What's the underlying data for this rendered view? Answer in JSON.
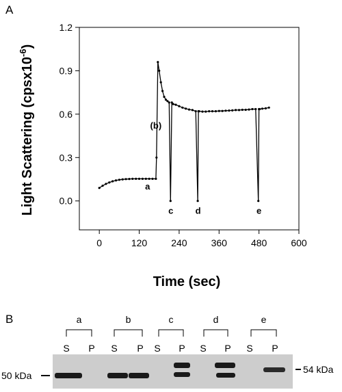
{
  "panel_a_label": "A",
  "panel_b_label": "B",
  "chart_data": {
    "type": "line",
    "xlabel": "Time (sec)",
    "ylabel_main": "Light Scattering (cpsx10",
    "ylabel_exp": "-6",
    "ylabel_close": ")",
    "xlim": [
      -60,
      600
    ],
    "ylim": [
      -0.2,
      1.2
    ],
    "xticks": [
      0,
      120,
      240,
      360,
      480,
      600
    ],
    "yticks": [
      0.0,
      0.3,
      0.6,
      0.9,
      1.2
    ],
    "xtick_labels": [
      "0",
      "120",
      "240",
      "360",
      "480",
      "600"
    ],
    "ytick_labels": [
      "0.0",
      "0.3",
      "0.6",
      "0.9",
      "1.2"
    ],
    "grid": false,
    "series": [
      {
        "x": [
          0,
          10,
          20,
          30,
          40,
          50,
          60,
          70,
          80,
          90,
          100,
          110,
          120,
          130,
          140,
          150,
          160,
          170,
          172,
          176,
          180,
          185,
          190,
          195,
          200,
          205,
          210,
          214,
          218,
          222,
          230,
          240,
          250,
          260,
          270,
          280,
          290,
          296,
          298,
          300,
          310,
          320,
          330,
          340,
          350,
          360,
          370,
          380,
          390,
          400,
          410,
          420,
          430,
          440,
          450,
          460,
          470,
          478,
          480,
          482,
          490,
          500,
          510
        ],
        "y": [
          0.09,
          0.105,
          0.118,
          0.128,
          0.136,
          0.142,
          0.146,
          0.149,
          0.151,
          0.152,
          0.153,
          0.153,
          0.153,
          0.153,
          0.153,
          0.153,
          0.153,
          0.153,
          0.3,
          0.96,
          0.9,
          0.82,
          0.76,
          0.72,
          0.7,
          0.69,
          0.68,
          0.0,
          0.68,
          0.67,
          0.665,
          0.655,
          0.645,
          0.638,
          0.632,
          0.628,
          0.62,
          0.0,
          0.62,
          0.62,
          0.618,
          0.618,
          0.62,
          0.62,
          0.62,
          0.622,
          0.622,
          0.624,
          0.625,
          0.626,
          0.628,
          0.628,
          0.63,
          0.63,
          0.632,
          0.635,
          0.635,
          0.0,
          0.635,
          0.635,
          0.638,
          0.64,
          0.645
        ]
      }
    ],
    "annotations": [
      {
        "text": "a",
        "x": 145,
        "y": 0.08
      },
      {
        "text": "(b)",
        "x": 170,
        "y": 0.5
      },
      {
        "text": "c",
        "x": 215,
        "y": -0.09
      },
      {
        "text": "d",
        "x": 297,
        "y": -0.09
      },
      {
        "text": "e",
        "x": 480,
        "y": -0.09
      }
    ]
  },
  "blot": {
    "lanes": [
      {
        "group": "a",
        "s_label": "S",
        "p_label": "P"
      },
      {
        "group": "b",
        "s_label": "S",
        "p_label": "P"
      },
      {
        "group": "c",
        "s_label": "S",
        "p_label": "P"
      },
      {
        "group": "d",
        "s_label": "S",
        "p_label": "P"
      },
      {
        "group": "e",
        "s_label": "S",
        "p_label": "P"
      }
    ],
    "left_marker": "50 kDa",
    "right_marker": "54 kDa"
  }
}
